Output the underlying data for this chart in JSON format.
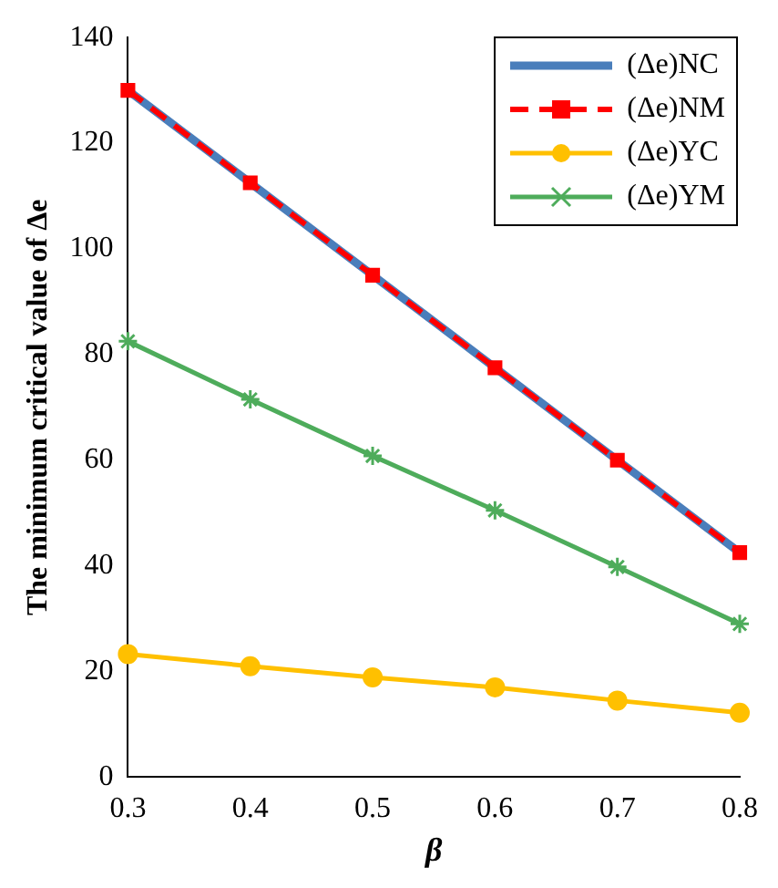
{
  "chart_data": {
    "type": "line",
    "xlabel": "β",
    "ylabel": "The minimum critical value of Δe",
    "x": [
      0.3,
      0.4,
      0.5,
      0.6,
      0.7,
      0.8
    ],
    "xlim": [
      0.3,
      0.8
    ],
    "xticks": [
      0.3,
      0.4,
      0.5,
      0.6,
      0.7,
      0.8
    ],
    "ylim": [
      0,
      140
    ],
    "yticks": [
      0,
      20,
      40,
      60,
      80,
      100,
      120,
      140
    ],
    "grid": false,
    "legend": "top right",
    "series": [
      {
        "name": "(Δe)NC",
        "color": "#4a7ebb",
        "marker": "none",
        "line_style": "solid",
        "values": [
          130,
          112.5,
          95,
          77.5,
          60,
          42.5
        ]
      },
      {
        "name": "(Δe)NM",
        "color": "#ff0000",
        "marker": "square",
        "line_style": "dashed",
        "values": [
          130,
          112.5,
          95,
          77.5,
          60,
          42.5
        ]
      },
      {
        "name": "(Δe)YC",
        "color": "#ffc000",
        "marker": "circle",
        "line_style": "solid",
        "values": [
          23.3,
          21,
          18.9,
          17,
          14.5,
          12.2
        ]
      },
      {
        "name": "(Δe)YM",
        "color": "#4eac5b",
        "marker": "cross",
        "line_style": "solid",
        "values": [
          82.5,
          71.5,
          60.8,
          50.5,
          39.8,
          29
        ]
      }
    ]
  }
}
